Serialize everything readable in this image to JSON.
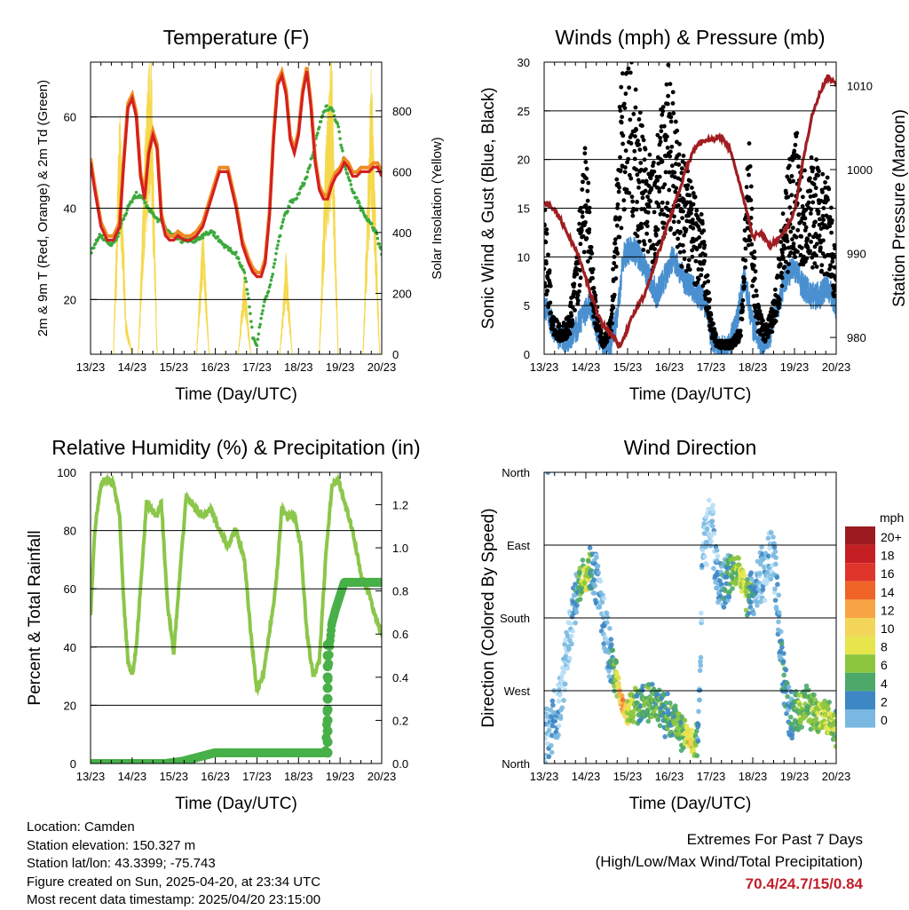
{
  "panels": {
    "temperature": {
      "title": "Temperature (F)",
      "xlabel": "Time (Day/UTC)",
      "ylabel_left": "2m & 9m T (Red, Orange) & 2m Td (Green)",
      "ylabel_right": "Solar Insolation (Yellow)"
    },
    "winds": {
      "title": "Winds (mph) & Pressure (mb)",
      "xlabel": "Time (Day/UTC)",
      "ylabel_left": "Sonic Wind & Gust (Blue, Black)",
      "ylabel_right": "Station Pressure (Maroon)"
    },
    "humidity": {
      "title": "Relative Humidity (%) & Precipitation (in)",
      "xlabel": "Time (Day/UTC)",
      "ylabel_left": "Percent & Total Rainfall"
    },
    "direction": {
      "title": "Wind Direction",
      "xlabel": "Time (Day/UTC)",
      "ylabel_left": "Direction (Colored By Speed)",
      "colorbar_title": "mph"
    }
  },
  "info": {
    "location": "Location: Camden",
    "elevation": "Station elevation: 150.327 m",
    "latlon": "Station lat/lon: 43.3399; -75.743",
    "created": "Figure created on Sun, 2025-04-20, at 23:34 UTC",
    "latest": "Most recent data timestamp: 2025/04/20 23:15:00"
  },
  "extremes": {
    "heading": "Extremes For Past 7 Days",
    "subheading": "(High/Low/Max Wind/Total Precipitation)",
    "values": "70.4/24.7/15/0.84"
  },
  "colors": {
    "temp_2m": "#d42020",
    "temp_9m": "#f08a24",
    "dewpoint": "#3caa3c",
    "insolation": "#f4d84c",
    "wind": "#4a90d0",
    "gust": "#000000",
    "pressure": "#a01e22",
    "rh": "#8cc64a",
    "precip": "#48b048"
  },
  "chart_data": [
    {
      "type": "line",
      "title": "Temperature (F)",
      "xlabel": "Time (Day/UTC)",
      "ylabel": "2m & 9m T (Red, Orange) & 2m Td (Green)",
      "y2label": "Solar Insolation (Yellow)",
      "x_ticks": [
        "13/23",
        "14/23",
        "15/23",
        "16/23",
        "17/23",
        "18/23",
        "19/23",
        "20/23"
      ],
      "xlim": [
        0,
        7
      ],
      "ylim": [
        8,
        72
      ],
      "y_ticks": [
        20,
        40,
        60
      ],
      "y2lim": [
        0,
        960
      ],
      "y2_ticks": [
        0,
        200,
        400,
        600,
        800
      ],
      "grid": "horizontal",
      "series": [
        {
          "name": "2m T",
          "axis": "left",
          "x": [
            0,
            0.1,
            0.25,
            0.4,
            0.55,
            0.7,
            0.8,
            0.9,
            1.0,
            1.1,
            1.2,
            1.3,
            1.4,
            1.5,
            1.6,
            1.7,
            1.8,
            1.9,
            2.0,
            2.1,
            2.25,
            2.4,
            2.55,
            2.7,
            2.9,
            3.1,
            3.3,
            3.5,
            3.65,
            3.8,
            3.9,
            4.0,
            4.1,
            4.2,
            4.3,
            4.4,
            4.5,
            4.6,
            4.7,
            4.8,
            4.9,
            5.0,
            5.1,
            5.2,
            5.3,
            5.4,
            5.5,
            5.6,
            5.7,
            5.8,
            5.9,
            6.0,
            6.1,
            6.2,
            6.3,
            6.4,
            6.5,
            6.6,
            6.7,
            6.8,
            6.9,
            7.0
          ],
          "y": [
            50,
            44,
            36,
            33,
            33,
            36,
            50,
            62,
            64,
            60,
            47,
            42,
            52,
            56,
            53,
            38,
            34,
            33,
            33,
            34,
            33,
            33,
            34,
            36,
            42,
            48,
            48,
            40,
            32,
            28,
            26,
            25,
            25,
            28,
            38,
            55,
            67,
            69,
            65,
            55,
            52,
            56,
            65,
            70,
            62,
            50,
            44,
            42,
            42,
            45,
            47,
            48,
            50,
            49,
            47,
            47,
            48,
            48,
            48,
            49,
            49,
            47
          ]
        },
        {
          "name": "2m Td",
          "axis": "left",
          "x": [
            0,
            0.1,
            0.2,
            0.35,
            0.5,
            0.65,
            0.8,
            0.95,
            1.1,
            1.25,
            1.4,
            1.55,
            1.7,
            1.85,
            2.0,
            2.15,
            2.3,
            2.5,
            2.7,
            2.9,
            3.1,
            3.3,
            3.5,
            3.6,
            3.7,
            3.8,
            3.9,
            4.0,
            4.1,
            4.2,
            4.35,
            4.5,
            4.65,
            4.8,
            5.0,
            5.2,
            5.35,
            5.5,
            5.65,
            5.8,
            5.95,
            6.1,
            6.3,
            6.5,
            6.7,
            6.85,
            7.0
          ],
          "y": [
            30,
            32,
            34,
            33,
            32,
            34,
            38,
            41,
            43,
            42,
            40,
            38,
            37,
            35,
            34,
            33,
            33,
            33,
            34,
            35,
            33,
            31,
            30,
            28,
            26,
            20,
            12,
            10,
            16,
            20,
            24,
            32,
            38,
            41,
            43,
            47,
            52,
            58,
            62,
            62,
            58,
            50,
            44,
            40,
            37,
            35,
            30
          ]
        },
        {
          "name": "Solar Insolation",
          "axis": "right",
          "x": [
            0.55,
            0.7,
            0.85,
            1.0,
            1.15,
            1.3,
            1.45,
            1.6,
            1.75,
            2.55,
            2.7,
            2.85,
            3.55,
            3.7,
            3.85,
            4.55,
            4.7,
            4.85,
            5.5,
            5.65,
            5.8,
            5.95,
            6.55,
            6.75,
            6.95
          ],
          "y": [
            0,
            750,
            100,
            0,
            0,
            600,
            950,
            0,
            0,
            0,
            400,
            0,
            0,
            250,
            0,
            0,
            300,
            0,
            0,
            600,
            900,
            0,
            0,
            850,
            0
          ]
        }
      ]
    },
    {
      "type": "scatter",
      "title": "Winds (mph) & Pressure (mb)",
      "xlabel": "Time (Day/UTC)",
      "ylabel": "Sonic Wind & Gust (Blue, Black)",
      "y2label": "Station Pressure (Maroon)",
      "x_ticks": [
        "13/23",
        "14/23",
        "15/23",
        "16/23",
        "17/23",
        "18/23",
        "19/23",
        "20/23"
      ],
      "xlim": [
        0,
        7
      ],
      "ylim": [
        0,
        30
      ],
      "y_ticks": [
        0,
        5,
        10,
        15,
        20,
        25,
        30
      ],
      "y2lim": [
        978,
        1012.8
      ],
      "y2_ticks": [
        980,
        990,
        1000,
        1010
      ],
      "grid": "horizontal",
      "series": [
        {
          "name": "Sonic Wind",
          "axis": "left",
          "x": [
            0,
            0.3,
            0.5,
            0.7,
            0.95,
            1.1,
            1.3,
            1.45,
            1.6,
            1.75,
            1.9,
            2.1,
            2.3,
            2.5,
            2.7,
            2.9,
            3.1,
            3.3,
            3.5,
            3.7,
            3.9,
            4.0,
            4.2,
            4.4,
            4.6,
            4.8,
            5.0,
            5.2,
            5.4,
            5.6,
            5.8,
            6.0,
            6.2,
            6.4,
            6.6,
            6.8,
            7.0
          ],
          "y": [
            5,
            2,
            1.5,
            2,
            4,
            5,
            2,
            0.5,
            1,
            4,
            10,
            11,
            10,
            8,
            6,
            8,
            10,
            8,
            7,
            6,
            5,
            2,
            0.5,
            0.5,
            3,
            8,
            3,
            1,
            2,
            5,
            8,
            9,
            7,
            6,
            6,
            7,
            5
          ]
        },
        {
          "name": "Gust",
          "axis": "left",
          "x": [
            0,
            0.2,
            0.4,
            0.6,
            0.8,
            0.95,
            1.05,
            1.2,
            1.4,
            1.6,
            1.8,
            1.9,
            2.05,
            2.2,
            2.4,
            2.6,
            2.8,
            3.0,
            3.2,
            3.4,
            3.6,
            3.8,
            4.0,
            4.15,
            4.3,
            4.5,
            4.7,
            4.9,
            5.1,
            5.3,
            5.5,
            5.7,
            5.9,
            6.05,
            6.2,
            6.4,
            6.6,
            6.8,
            7.0
          ],
          "y": [
            12,
            3,
            2,
            3,
            8,
            17,
            14,
            5,
            1,
            3,
            18,
            24,
            26,
            20,
            16,
            14,
            18,
            22,
            16,
            14,
            12,
            10,
            3,
            1,
            1,
            1,
            2,
            17,
            4,
            2,
            4,
            10,
            15,
            17,
            14,
            15,
            14,
            13,
            8
          ]
        },
        {
          "name": "Station Pressure",
          "axis": "right",
          "x": [
            0,
            0.2,
            0.4,
            0.6,
            0.8,
            1.0,
            1.2,
            1.4,
            1.6,
            1.8,
            2.0,
            2.2,
            2.4,
            2.6,
            2.8,
            3.0,
            3.2,
            3.4,
            3.6,
            3.8,
            4.0,
            4.2,
            4.4,
            4.6,
            4.8,
            5.0,
            5.2,
            5.4,
            5.6,
            5.8,
            6.0,
            6.2,
            6.4,
            6.6,
            6.8,
            7.0
          ],
          "y": [
            996,
            995.5,
            994,
            992,
            990,
            987,
            984,
            981.5,
            980.5,
            979,
            981,
            983.5,
            985,
            988,
            991,
            994,
            997,
            1000,
            1002.5,
            1003.5,
            1003.5,
            1004,
            1003,
            1000,
            996,
            992,
            992.5,
            991,
            991.5,
            993,
            995,
            1001,
            1006,
            1009,
            1011,
            1010
          ]
        }
      ]
    },
    {
      "type": "line",
      "title": "Relative Humidity (%) & Precipitation (in)",
      "xlabel": "Time (Day/UTC)",
      "ylabel": "Percent & Total Rainfall",
      "x_ticks": [
        "13/23",
        "14/23",
        "15/23",
        "16/23",
        "17/23",
        "18/23",
        "19/23",
        "20/23"
      ],
      "xlim": [
        0,
        7
      ],
      "ylim": [
        0,
        100
      ],
      "y_ticks": [
        0,
        20,
        40,
        60,
        80,
        100
      ],
      "y2lim": [
        0,
        1.35
      ],
      "y2_ticks": [
        0.0,
        0.2,
        0.4,
        0.6,
        0.8,
        1.0,
        1.2
      ],
      "grid": "horizontal",
      "series": [
        {
          "name": "Relative Humidity",
          "axis": "left",
          "x": [
            0,
            0.1,
            0.25,
            0.4,
            0.55,
            0.7,
            0.8,
            0.9,
            1.0,
            1.1,
            1.2,
            1.35,
            1.5,
            1.6,
            1.7,
            1.85,
            2.0,
            2.15,
            2.3,
            2.5,
            2.7,
            2.9,
            3.1,
            3.3,
            3.5,
            3.7,
            3.85,
            4.0,
            4.15,
            4.3,
            4.45,
            4.6,
            4.75,
            4.9,
            5.05,
            5.2,
            5.35,
            5.5,
            5.65,
            5.8,
            5.95,
            6.1,
            6.3,
            6.5,
            6.7,
            6.85,
            7.0
          ],
          "y": [
            50,
            80,
            96,
            98,
            96,
            85,
            55,
            35,
            30,
            40,
            60,
            90,
            86,
            85,
            90,
            55,
            38,
            65,
            92,
            88,
            85,
            87,
            80,
            75,
            80,
            70,
            45,
            25,
            30,
            45,
            60,
            88,
            85,
            85,
            75,
            45,
            30,
            35,
            70,
            95,
            98,
            90,
            80,
            65,
            58,
            50,
            45
          ]
        },
        {
          "name": "Total Precipitation",
          "axis": "right",
          "x": [
            0,
            1.0,
            1.8,
            2.2,
            2.6,
            3.0,
            3.5,
            4.0,
            4.5,
            5.0,
            5.5,
            5.65,
            5.7,
            5.72,
            5.75,
            5.8,
            5.9,
            6.0,
            6.1,
            6.3,
            6.6,
            7.0
          ],
          "y": [
            0,
            0,
            0,
            0.01,
            0.03,
            0.05,
            0.05,
            0.05,
            0.05,
            0.05,
            0.05,
            0.05,
            0.3,
            0.45,
            0.55,
            0.65,
            0.72,
            0.78,
            0.84,
            0.84,
            0.84,
            0.84
          ]
        }
      ]
    },
    {
      "type": "scatter",
      "title": "Wind Direction",
      "xlabel": "Time (Day/UTC)",
      "ylabel": "Direction (Colored By Speed)",
      "x_ticks": [
        "13/23",
        "14/23",
        "15/23",
        "16/23",
        "17/23",
        "18/23",
        "19/23",
        "20/23"
      ],
      "xlim": [
        0,
        7
      ],
      "ylim": [
        360,
        0
      ],
      "y_ticks": [
        "North",
        "West",
        "South",
        "East",
        "North"
      ],
      "y_tick_values": [
        360,
        270,
        180,
        90,
        0
      ],
      "grid": "horizontal",
      "colorbar": {
        "title": "mph",
        "labels": [
          "20+",
          "18",
          "16",
          "14",
          "12",
          "10",
          "8",
          "6",
          "4",
          "2",
          "0"
        ],
        "colors": [
          "#9b1b1e",
          "#c41f23",
          "#e0352a",
          "#f06428",
          "#f7a444",
          "#f3d55a",
          "#e6e54e",
          "#8cc63f",
          "#4ca96a",
          "#3d87c4",
          "#79b8e0",
          "#b7dff5"
        ]
      },
      "series": [
        {
          "name": "Direction",
          "x": [
            0,
            0.1,
            0.2,
            0.3,
            0.4,
            0.6,
            0.8,
            0.9,
            1.0,
            1.1,
            1.2,
            1.3,
            1.5,
            1.7,
            1.8,
            1.9,
            2.0,
            2.1,
            2.3,
            2.5,
            2.7,
            2.9,
            3.1,
            3.3,
            3.5,
            3.6,
            3.7,
            3.8,
            3.9,
            4.0,
            4.2,
            4.4,
            4.6,
            4.8,
            4.9,
            5.0,
            5.1,
            5.3,
            5.5,
            5.7,
            5.9,
            6.0,
            6.1,
            6.3,
            6.5,
            6.7,
            6.9,
            7.0
          ],
          "y": [
            320,
            330,
            310,
            300,
            280,
            200,
            140,
            130,
            135,
            120,
            125,
            140,
            210,
            250,
            270,
            290,
            300,
            290,
            285,
            285,
            290,
            300,
            305,
            320,
            330,
            340,
            320,
            100,
            80,
            60,
            140,
            130,
            120,
            140,
            160,
            150,
            140,
            120,
            100,
            240,
            300,
            295,
            295,
            290,
            300,
            300,
            310,
            320
          ],
          "speed": [
            2,
            2,
            3,
            2,
            1,
            1,
            4,
            8,
            10,
            6,
            3,
            2,
            2,
            6,
            12,
            14,
            10,
            8,
            6,
            7,
            6,
            5,
            6,
            7,
            12,
            9,
            3,
            1,
            1,
            1,
            3,
            4,
            8,
            10,
            6,
            4,
            3,
            2,
            1,
            5,
            4,
            6,
            8,
            7,
            8,
            9,
            8,
            6
          ]
        }
      ]
    }
  ]
}
